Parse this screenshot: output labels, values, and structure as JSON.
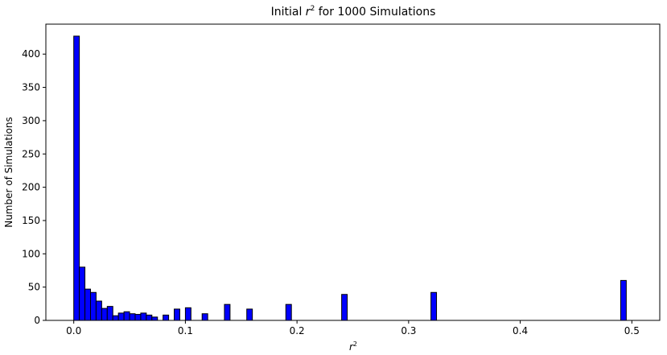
{
  "chart_data": {
    "type": "bar",
    "title": {
      "prefix": "Initial ",
      "var": "r",
      "sup": "2",
      "suffix": " for 1000 Simulations"
    },
    "xlabel": {
      "var": "r",
      "sup": "2"
    },
    "ylabel": "Number of Simulations",
    "xlim": [
      -0.025,
      0.525
    ],
    "ylim": [
      0,
      445
    ],
    "bin_width": 0.005,
    "x_ticks": [
      {
        "value": 0.0,
        "label": "0.0"
      },
      {
        "value": 0.1,
        "label": "0.1"
      },
      {
        "value": 0.2,
        "label": "0.2"
      },
      {
        "value": 0.3,
        "label": "0.3"
      },
      {
        "value": 0.4,
        "label": "0.4"
      },
      {
        "value": 0.5,
        "label": "0.5"
      }
    ],
    "y_ticks": [
      {
        "value": 0,
        "label": "0"
      },
      {
        "value": 50,
        "label": "50"
      },
      {
        "value": 100,
        "label": "100"
      },
      {
        "value": 150,
        "label": "150"
      },
      {
        "value": 200,
        "label": "200"
      },
      {
        "value": 250,
        "label": "250"
      },
      {
        "value": 300,
        "label": "300"
      },
      {
        "value": 350,
        "label": "350"
      },
      {
        "value": 400,
        "label": "400"
      }
    ],
    "bars": [
      {
        "x": 0.0,
        "count": 427
      },
      {
        "x": 0.005,
        "count": 80
      },
      {
        "x": 0.01,
        "count": 47
      },
      {
        "x": 0.015,
        "count": 42
      },
      {
        "x": 0.02,
        "count": 29
      },
      {
        "x": 0.025,
        "count": 18
      },
      {
        "x": 0.03,
        "count": 21
      },
      {
        "x": 0.035,
        "count": 7
      },
      {
        "x": 0.04,
        "count": 11
      },
      {
        "x": 0.045,
        "count": 13
      },
      {
        "x": 0.05,
        "count": 10
      },
      {
        "x": 0.055,
        "count": 9
      },
      {
        "x": 0.06,
        "count": 11
      },
      {
        "x": 0.065,
        "count": 8
      },
      {
        "x": 0.07,
        "count": 5
      },
      {
        "x": 0.08,
        "count": 8
      },
      {
        "x": 0.09,
        "count": 17
      },
      {
        "x": 0.1,
        "count": 19
      },
      {
        "x": 0.115,
        "count": 10
      },
      {
        "x": 0.135,
        "count": 24
      },
      {
        "x": 0.155,
        "count": 17
      },
      {
        "x": 0.19,
        "count": 24
      },
      {
        "x": 0.24,
        "count": 39
      },
      {
        "x": 0.32,
        "count": 42
      },
      {
        "x": 0.49,
        "count": 60
      }
    ],
    "colors": {
      "bar_fill": "#0000ff",
      "bar_edge": "#000000"
    },
    "grid": false,
    "legend": "none"
  }
}
